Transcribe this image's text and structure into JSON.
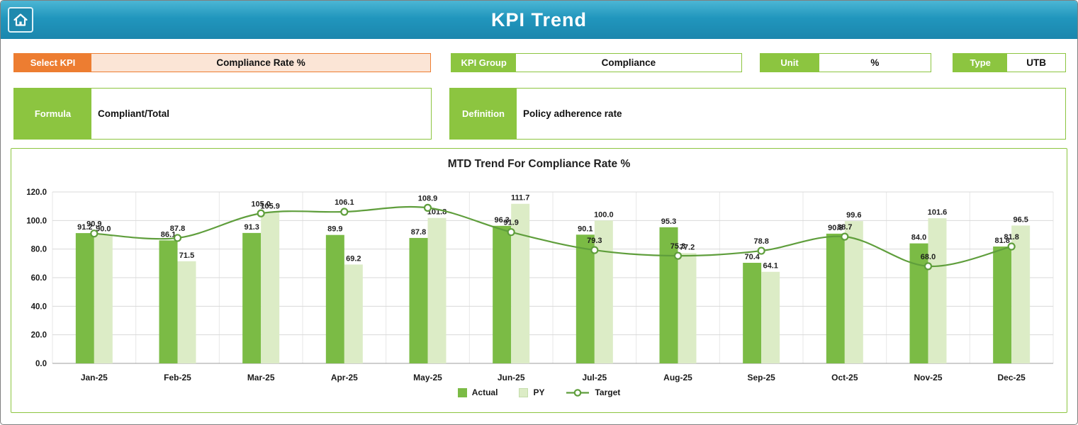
{
  "header": {
    "title": "KPI Trend"
  },
  "fields": {
    "select_kpi": {
      "label": "Select KPI",
      "value": "Compliance Rate %"
    },
    "kpi_group": {
      "label": "KPI Group",
      "value": "Compliance"
    },
    "unit": {
      "label": "Unit",
      "value": "%"
    },
    "type": {
      "label": "Type",
      "value": "UTB"
    },
    "formula": {
      "label": "Formula",
      "value": "Compliant/Total"
    },
    "definition": {
      "label": "Definition",
      "value": "Policy adherence rate"
    }
  },
  "chart_data": {
    "type": "bar",
    "title": "MTD Trend For Compliance Rate %",
    "categories": [
      "Jan-25",
      "Feb-25",
      "Mar-25",
      "Apr-25",
      "May-25",
      "Jun-25",
      "Jul-25",
      "Aug-25",
      "Sep-25",
      "Oct-25",
      "Nov-25",
      "Dec-25"
    ],
    "series": [
      {
        "name": "Actual",
        "type": "bar",
        "color": "#7bbb45",
        "values": [
          91.2,
          86.1,
          91.3,
          89.9,
          87.8,
          96.3,
          90.1,
          95.3,
          70.4,
          90.8,
          84.0,
          81.8
        ]
      },
      {
        "name": "PY",
        "type": "bar",
        "color": "#dcecc6",
        "values": [
          90.0,
          71.5,
          105.9,
          69.2,
          101.8,
          111.7,
          100.0,
          77.2,
          64.1,
          99.6,
          101.6,
          96.5
        ]
      },
      {
        "name": "Target",
        "type": "line",
        "color": "#5f9e3c",
        "values": [
          90.9,
          87.8,
          105.0,
          106.1,
          108.9,
          91.9,
          79.3,
          75.3,
          78.8,
          88.7,
          68.0,
          81.8
        ]
      }
    ],
    "ylim": [
      0,
      120
    ],
    "ytick_step": 20,
    "grid": "horizontal-and-vertical",
    "legend_position": "bottom",
    "xlabel": "",
    "ylabel": ""
  },
  "colors": {
    "header_teal": "#2196bd",
    "accent_orange": "#ED7D31",
    "peach_fill": "#FBE5D6",
    "accent_green": "#8CC540",
    "bar_actual": "#7bbb45",
    "bar_py": "#dcecc6",
    "line_target": "#5f9e3c",
    "gridline": "#d9d9d9"
  }
}
